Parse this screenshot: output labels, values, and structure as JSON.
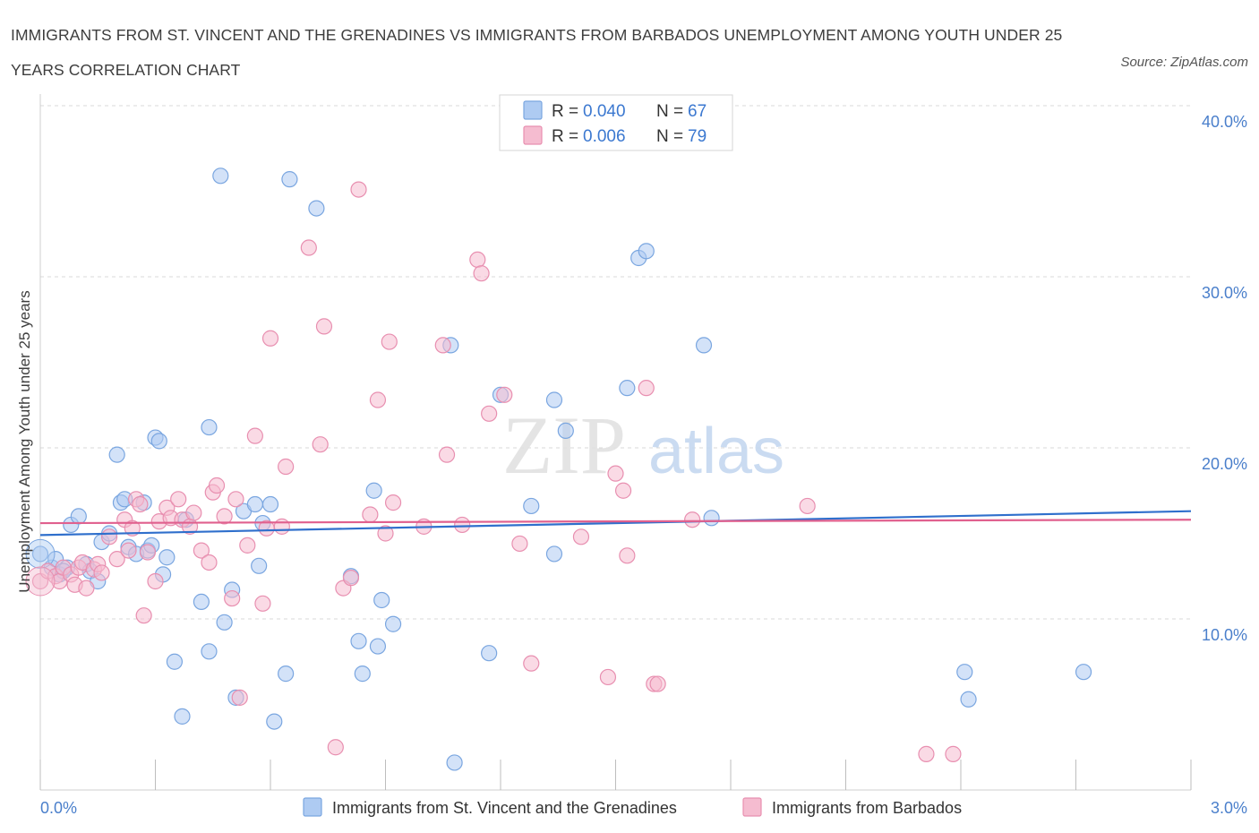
{
  "header": {
    "title": "IMMIGRANTS FROM ST. VINCENT AND THE GRENADINES VS IMMIGRANTS FROM BARBADOS UNEMPLOYMENT AMONG YOUTH UNDER 25 YEARS CORRELATION CHART",
    "source": "Source: ZipAtlas.com"
  },
  "watermark": {
    "zip": "ZIP",
    "atlas": "atlas"
  },
  "stats": {
    "r_label": "R =",
    "n_label": "N =",
    "rows": [
      {
        "r": "0.040",
        "n": "67"
      },
      {
        "r": "0.006",
        "n": "79"
      }
    ]
  },
  "colors": {
    "blue_fill": "#aecbf2",
    "blue_stroke": "#7aa6e0",
    "blue_line": "#2f6fcc",
    "pink_fill": "#f5bcd0",
    "pink_stroke": "#e88fb0",
    "pink_line": "#e0608e",
    "grid": "#d8d8d8",
    "axis_text": "#4a7fcb"
  },
  "chart_data": {
    "type": "scatter",
    "title": "IMMIGRANTS FROM ST. VINCENT AND THE GRENADINES VS IMMIGRANTS FROM BARBADOS UNEMPLOYMENT AMONG YOUTH UNDER 25 YEARS CORRELATION CHART",
    "xlabel": "",
    "ylabel": "Unemployment Among Youth under 25 years",
    "xlim": [
      0,
      3.0
    ],
    "ylim": [
      0,
      40
    ],
    "x_tick_labels": [
      "0.0%",
      "3.0%"
    ],
    "y_ticks": [
      10,
      20,
      30,
      40
    ],
    "y_tick_labels": [
      "10.0%",
      "20.0%",
      "30.0%",
      "40.0%"
    ],
    "grid": true,
    "legend_position": "bottom",
    "series": [
      {
        "name": "Immigrants from St. Vincent and the Grenadines",
        "color": "blue",
        "trend": [
          [
            0.0,
            14.9
          ],
          [
            3.0,
            16.3
          ]
        ],
        "points": [
          [
            0.0,
            13.8
          ],
          [
            0.03,
            13.0
          ],
          [
            0.04,
            13.5
          ],
          [
            0.05,
            12.6
          ],
          [
            0.07,
            13.0
          ],
          [
            0.08,
            15.5
          ],
          [
            0.1,
            16.0
          ],
          [
            0.12,
            13.2
          ],
          [
            0.13,
            12.8
          ],
          [
            0.15,
            12.2
          ],
          [
            0.16,
            14.5
          ],
          [
            0.18,
            15.0
          ],
          [
            0.2,
            19.6
          ],
          [
            0.21,
            16.8
          ],
          [
            0.22,
            17.0
          ],
          [
            0.23,
            14.2
          ],
          [
            0.25,
            13.8
          ],
          [
            0.27,
            16.8
          ],
          [
            0.28,
            14.0
          ],
          [
            0.29,
            14.3
          ],
          [
            0.3,
            20.6
          ],
          [
            0.31,
            20.4
          ],
          [
            0.32,
            12.6
          ],
          [
            0.33,
            13.6
          ],
          [
            0.35,
            7.5
          ],
          [
            0.37,
            4.3
          ],
          [
            0.38,
            15.8
          ],
          [
            0.42,
            11.0
          ],
          [
            0.44,
            21.2
          ],
          [
            0.44,
            8.1
          ],
          [
            0.47,
            35.9
          ],
          [
            0.48,
            9.8
          ],
          [
            0.5,
            11.7
          ],
          [
            0.51,
            5.4
          ],
          [
            0.53,
            16.3
          ],
          [
            0.56,
            16.7
          ],
          [
            0.57,
            13.1
          ],
          [
            0.58,
            15.6
          ],
          [
            0.6,
            16.7
          ],
          [
            0.61,
            4.0
          ],
          [
            0.64,
            6.8
          ],
          [
            0.65,
            35.7
          ],
          [
            0.72,
            34.0
          ],
          [
            0.81,
            12.5
          ],
          [
            0.83,
            8.7
          ],
          [
            0.84,
            6.8
          ],
          [
            0.87,
            17.5
          ],
          [
            0.88,
            8.4
          ],
          [
            0.89,
            11.1
          ],
          [
            0.92,
            9.7
          ],
          [
            1.07,
            26.0
          ],
          [
            1.08,
            1.6
          ],
          [
            1.17,
            8.0
          ],
          [
            1.2,
            23.1
          ],
          [
            1.28,
            16.6
          ],
          [
            1.34,
            22.8
          ],
          [
            1.34,
            13.8
          ],
          [
            1.37,
            21.0
          ],
          [
            1.53,
            23.5
          ],
          [
            1.56,
            31.1
          ],
          [
            1.58,
            31.5
          ],
          [
            1.73,
            26.0
          ],
          [
            1.75,
            15.9
          ],
          [
            2.41,
            6.9
          ],
          [
            2.42,
            5.3
          ],
          [
            2.72,
            6.9
          ],
          [
            0.06,
            12.8
          ]
        ]
      },
      {
        "name": "Immigrants from Barbados",
        "color": "pink",
        "trend": [
          [
            0.0,
            15.6
          ],
          [
            3.0,
            15.8
          ]
        ],
        "points": [
          [
            0.0,
            12.2
          ],
          [
            0.02,
            12.8
          ],
          [
            0.04,
            12.5
          ],
          [
            0.05,
            12.2
          ],
          [
            0.06,
            13.0
          ],
          [
            0.08,
            12.6
          ],
          [
            0.09,
            12.0
          ],
          [
            0.1,
            13.0
          ],
          [
            0.11,
            13.3
          ],
          [
            0.12,
            11.8
          ],
          [
            0.14,
            12.9
          ],
          [
            0.15,
            13.2
          ],
          [
            0.16,
            12.7
          ],
          [
            0.18,
            14.8
          ],
          [
            0.2,
            13.5
          ],
          [
            0.22,
            15.8
          ],
          [
            0.23,
            14.0
          ],
          [
            0.24,
            15.3
          ],
          [
            0.25,
            17.0
          ],
          [
            0.26,
            16.7
          ],
          [
            0.27,
            10.2
          ],
          [
            0.28,
            13.9
          ],
          [
            0.3,
            12.2
          ],
          [
            0.31,
            15.7
          ],
          [
            0.33,
            16.5
          ],
          [
            0.34,
            15.9
          ],
          [
            0.36,
            17.0
          ],
          [
            0.37,
            15.8
          ],
          [
            0.39,
            15.4
          ],
          [
            0.4,
            16.2
          ],
          [
            0.42,
            14.0
          ],
          [
            0.44,
            13.3
          ],
          [
            0.45,
            17.4
          ],
          [
            0.46,
            17.8
          ],
          [
            0.48,
            16.0
          ],
          [
            0.5,
            11.2
          ],
          [
            0.51,
            17.0
          ],
          [
            0.52,
            5.4
          ],
          [
            0.54,
            14.3
          ],
          [
            0.56,
            20.7
          ],
          [
            0.58,
            10.9
          ],
          [
            0.59,
            15.3
          ],
          [
            0.6,
            26.4
          ],
          [
            0.63,
            15.4
          ],
          [
            0.64,
            18.9
          ],
          [
            0.7,
            31.7
          ],
          [
            0.73,
            20.2
          ],
          [
            0.74,
            27.1
          ],
          [
            0.77,
            2.5
          ],
          [
            0.79,
            11.8
          ],
          [
            0.81,
            12.4
          ],
          [
            0.83,
            35.1
          ],
          [
            0.86,
            16.1
          ],
          [
            0.88,
            22.8
          ],
          [
            0.9,
            15.0
          ],
          [
            0.91,
            26.2
          ],
          [
            0.92,
            16.8
          ],
          [
            1.0,
            15.4
          ],
          [
            1.05,
            26.0
          ],
          [
            1.06,
            19.6
          ],
          [
            1.1,
            15.5
          ],
          [
            1.14,
            31.0
          ],
          [
            1.15,
            30.2
          ],
          [
            1.17,
            22.0
          ],
          [
            1.21,
            23.1
          ],
          [
            1.25,
            14.4
          ],
          [
            1.28,
            7.4
          ],
          [
            1.41,
            14.8
          ],
          [
            1.48,
            6.6
          ],
          [
            1.5,
            18.5
          ],
          [
            1.52,
            17.5
          ],
          [
            1.53,
            13.7
          ],
          [
            1.58,
            23.5
          ],
          [
            1.6,
            6.2
          ],
          [
            1.61,
            6.2
          ],
          [
            1.7,
            15.8
          ],
          [
            2.0,
            16.6
          ],
          [
            2.31,
            2.1
          ],
          [
            2.38,
            2.1
          ]
        ]
      }
    ]
  },
  "legend": {
    "items": [
      {
        "label": "Immigrants from St. Vincent and the Grenadines"
      },
      {
        "label": "Immigrants from Barbados"
      }
    ]
  }
}
